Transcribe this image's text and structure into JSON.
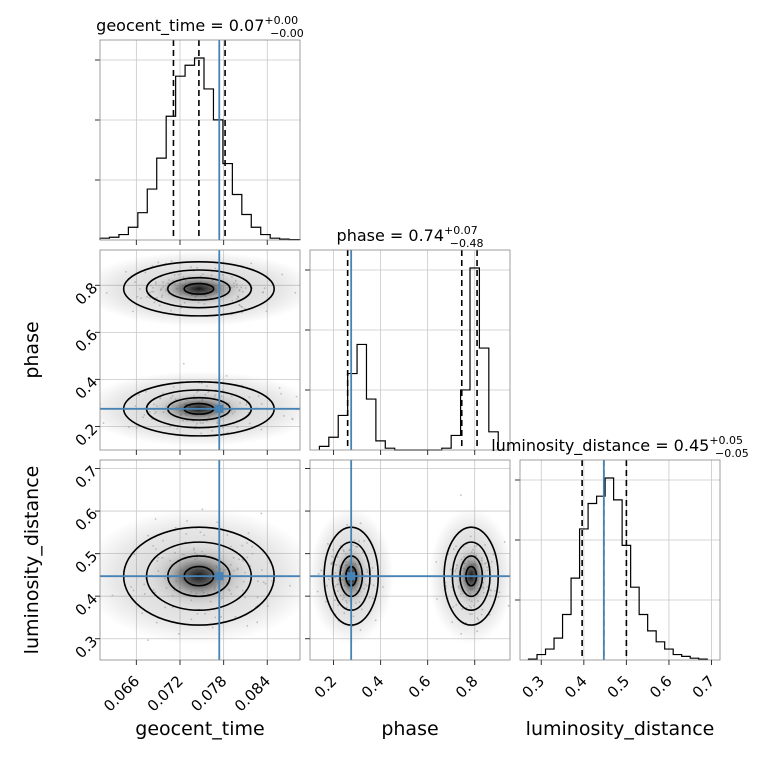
{
  "chart_data": {
    "type": "corner",
    "parameters": [
      "geocent_time",
      "phase",
      "luminosity_distance"
    ],
    "truth_color": "#4682b4",
    "truths": {
      "geocent_time": 0.0774,
      "phase": 0.275,
      "luminosity_distance": 0.447
    },
    "titles": {
      "geocent_time": {
        "label": "geocent_time = 0.07",
        "plus": "+0.00",
        "minus": "−0.00"
      },
      "phase": {
        "label": "phase = 0.74",
        "plus": "+0.07",
        "minus": "−0.48"
      },
      "luminosity_distance": {
        "label": "luminosity_distance = 0.45",
        "plus": "+0.05",
        "minus": "−0.05"
      }
    },
    "axis_labels": {
      "geocent_time": "geocent_time",
      "phase": "phase",
      "luminosity_distance": "luminosity_distance"
    },
    "ranges": {
      "geocent_time": [
        0.061,
        0.0885
      ],
      "phase": [
        0.1,
        0.95
      ],
      "luminosity_distance": [
        0.25,
        0.72
      ]
    },
    "ticks": {
      "geocent_time": [
        "0.066",
        "0.072",
        "0.078",
        "0.084"
      ],
      "phase": [
        "0.2",
        "0.4",
        "0.6",
        "0.8"
      ],
      "luminosity_distance": [
        "0.3",
        "0.4",
        "0.5",
        "0.6",
        "0.7"
      ]
    },
    "quantiles": {
      "geocent_time": [
        0.0711,
        0.0746,
        0.0782
      ],
      "phase": [
        0.26,
        0.745,
        0.81
      ],
      "luminosity_distance": [
        0.396,
        0.447,
        0.5
      ]
    },
    "histograms": {
      "geocent_time": {
        "edges": [
          0.061,
          0.0623,
          0.0636,
          0.0649,
          0.0662,
          0.0675,
          0.0688,
          0.0701,
          0.0714,
          0.0727,
          0.074,
          0.0753,
          0.0766,
          0.0779,
          0.0792,
          0.0805,
          0.0818,
          0.0831,
          0.0844,
          0.0857,
          0.087,
          0.0885
        ],
        "counts": [
          0.01,
          0.015,
          0.03,
          0.07,
          0.15,
          0.28,
          0.45,
          0.68,
          0.9,
          0.96,
          1.0,
          0.83,
          0.66,
          0.42,
          0.25,
          0.14,
          0.07,
          0.03,
          0.01,
          0.005,
          0.002
        ]
      },
      "phase": {
        "edges": [
          0.14,
          0.18,
          0.22,
          0.26,
          0.3,
          0.34,
          0.38,
          0.42,
          0.46,
          0.5,
          0.54,
          0.58,
          0.62,
          0.66,
          0.7,
          0.74,
          0.78,
          0.82,
          0.86,
          0.9
        ],
        "counts": [
          0.02,
          0.07,
          0.19,
          0.42,
          0.58,
          0.28,
          0.05,
          0.01,
          0.0,
          0.0,
          0.0,
          0.0,
          0.0,
          0.01,
          0.08,
          0.33,
          1.0,
          0.56,
          0.1
        ]
      },
      "luminosity_distance": {
        "edges": [
          0.27,
          0.29,
          0.31,
          0.33,
          0.35,
          0.37,
          0.39,
          0.41,
          0.43,
          0.45,
          0.47,
          0.49,
          0.51,
          0.53,
          0.55,
          0.57,
          0.59,
          0.61,
          0.63,
          0.65,
          0.67,
          0.69
        ],
        "counts": [
          0.005,
          0.03,
          0.06,
          0.12,
          0.25,
          0.45,
          0.72,
          0.86,
          0.9,
          1.0,
          0.88,
          0.63,
          0.4,
          0.25,
          0.16,
          0.1,
          0.06,
          0.03,
          0.02,
          0.01,
          0.005
        ]
      }
    },
    "blobs": {
      "geocent_time_vs_phase": [
        {
          "x": 0.0746,
          "y": 0.785,
          "sx": 0.0045,
          "sy": 0.05
        },
        {
          "x": 0.0746,
          "y": 0.275,
          "sx": 0.0045,
          "sy": 0.05
        }
      ],
      "geocent_time_vs_luminosity_distance": [
        {
          "x": 0.0746,
          "y": 0.447,
          "sx": 0.0045,
          "sy": 0.05
        }
      ],
      "phase_vs_luminosity_distance": [
        {
          "x": 0.275,
          "y": 0.447,
          "sx": 0.05,
          "sy": 0.05
        },
        {
          "x": 0.785,
          "y": 0.447,
          "sx": 0.05,
          "sy": 0.05
        }
      ]
    },
    "grid": true
  }
}
